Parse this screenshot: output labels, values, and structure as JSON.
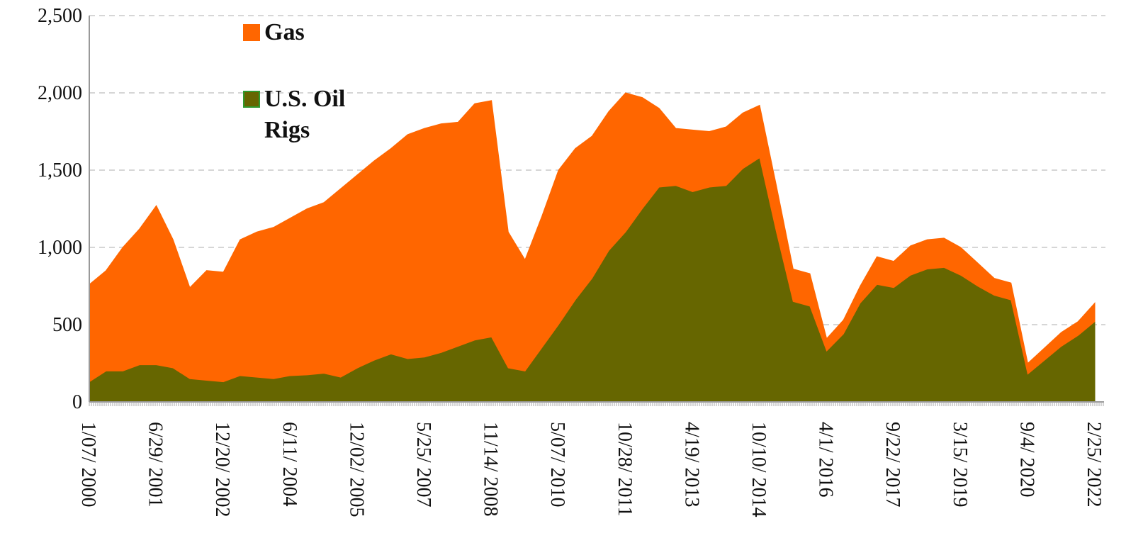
{
  "chart_data": {
    "type": "stacked_area",
    "categories": [
      "1/07/ 2000",
      null,
      null,
      null,
      "6/29/ 2001",
      null,
      null,
      null,
      "12/20/ 2002",
      null,
      null,
      null,
      "6/11/ 2004",
      null,
      null,
      null,
      "12/02/ 2005",
      null,
      null,
      null,
      "5/25/ 2007",
      null,
      null,
      null,
      "11/14/ 2008",
      null,
      null,
      null,
      "5/07/ 2010",
      null,
      null,
      null,
      "10/28/ 2011",
      null,
      null,
      null,
      "4/19/ 2013",
      null,
      null,
      null,
      "10/10/ 2014",
      null,
      null,
      null,
      "4/1/ 2016",
      null,
      null,
      null,
      "9/22/ 2017",
      null,
      null,
      null,
      "3/15/ 2019",
      null,
      null,
      null,
      "9/4/ 2020",
      null,
      null,
      null,
      "2/25/ 2022"
    ],
    "series": [
      {
        "name": "U.S. Oil Rigs",
        "color": "#666600",
        "values": [
          130,
          200,
          200,
          240,
          240,
          220,
          150,
          140,
          130,
          170,
          160,
          150,
          170,
          175,
          185,
          160,
          220,
          270,
          310,
          280,
          290,
          320,
          360,
          400,
          420,
          220,
          200,
          350,
          500,
          660,
          800,
          980,
          1100,
          1250,
          1390,
          1400,
          1360,
          1390,
          1400,
          1510,
          1580,
          1100,
          650,
          620,
          330,
          440,
          640,
          760,
          740,
          820,
          860,
          870,
          820,
          750,
          690,
          660,
          180,
          270,
          360,
          430,
          520
        ]
      },
      {
        "name": "Gas",
        "color": "#ff6600",
        "values": [
          630,
          650,
          800,
          880,
          1030,
          830,
          590,
          710,
          710,
          880,
          940,
          980,
          1020,
          1075,
          1105,
          1220,
          1250,
          1290,
          1330,
          1450,
          1480,
          1480,
          1450,
          1530,
          1530,
          880,
          720,
          850,
          1000,
          980,
          920,
          900,
          900,
          720,
          510,
          370,
          400,
          360,
          380,
          360,
          340,
          300,
          210,
          210,
          80,
          90,
          110,
          180,
          170,
          190,
          190,
          190,
          180,
          150,
          110,
          110,
          70,
          80,
          90,
          90,
          120
        ]
      }
    ],
    "ylim": [
      0,
      2500
    ],
    "yticks": [
      0,
      {
        "value": 500,
        "label": "500"
      },
      {
        "value": 1000,
        "label": "1,000"
      },
      {
        "value": 1500,
        "label": "1,500"
      },
      {
        "value": 2000,
        "label": "2,000"
      },
      {
        "value": 2500,
        "label": "2,500"
      }
    ],
    "grid": true
  }
}
